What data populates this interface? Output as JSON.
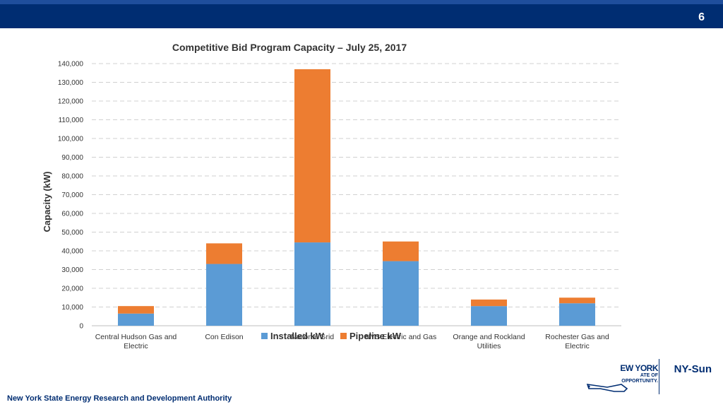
{
  "header": {
    "page_number": "6"
  },
  "footer": {
    "org": "New York State Energy Research and Development Authority"
  },
  "logo": {
    "ny_text1": "EW YORK",
    "ny_text2": "ATE OF",
    "ny_text3": "OPPORTUNITY.",
    "brand": "NY-Sun"
  },
  "colors": {
    "installed": "#5b9bd5",
    "pipeline": "#ed7d31",
    "navy": "#002d72"
  },
  "chart_data": {
    "type": "bar",
    "stacked": true,
    "title": "Competitive Bid Program Capacity – July 25, 2017",
    "ylabel": "Capacity (kW)",
    "xlabel": "",
    "ylim": [
      0,
      140000
    ],
    "ytick_step": 10000,
    "ytick_labels": [
      "0",
      "10,000",
      "20,000",
      "30,000",
      "40,000",
      "50,000",
      "60,000",
      "70,000",
      "80,000",
      "90,000",
      "100,000",
      "110,000",
      "120,000",
      "130,000",
      "140,000"
    ],
    "categories": [
      [
        "Central Hudson Gas and",
        "Electric"
      ],
      [
        "Con Edison"
      ],
      [
        "National Grid"
      ],
      [
        "NYS Electric and Gas"
      ],
      [
        "Orange and Rockland",
        "Utilities"
      ],
      [
        "Rochester Gas and",
        "Electric"
      ]
    ],
    "series": [
      {
        "name": "Installed kW",
        "values": [
          6500,
          33000,
          44500,
          34500,
          10500,
          12000
        ]
      },
      {
        "name": "Pipeline kW",
        "values": [
          4000,
          11000,
          92500,
          10500,
          3500,
          3000
        ]
      }
    ],
    "legend": "bottom",
    "grid": true
  }
}
